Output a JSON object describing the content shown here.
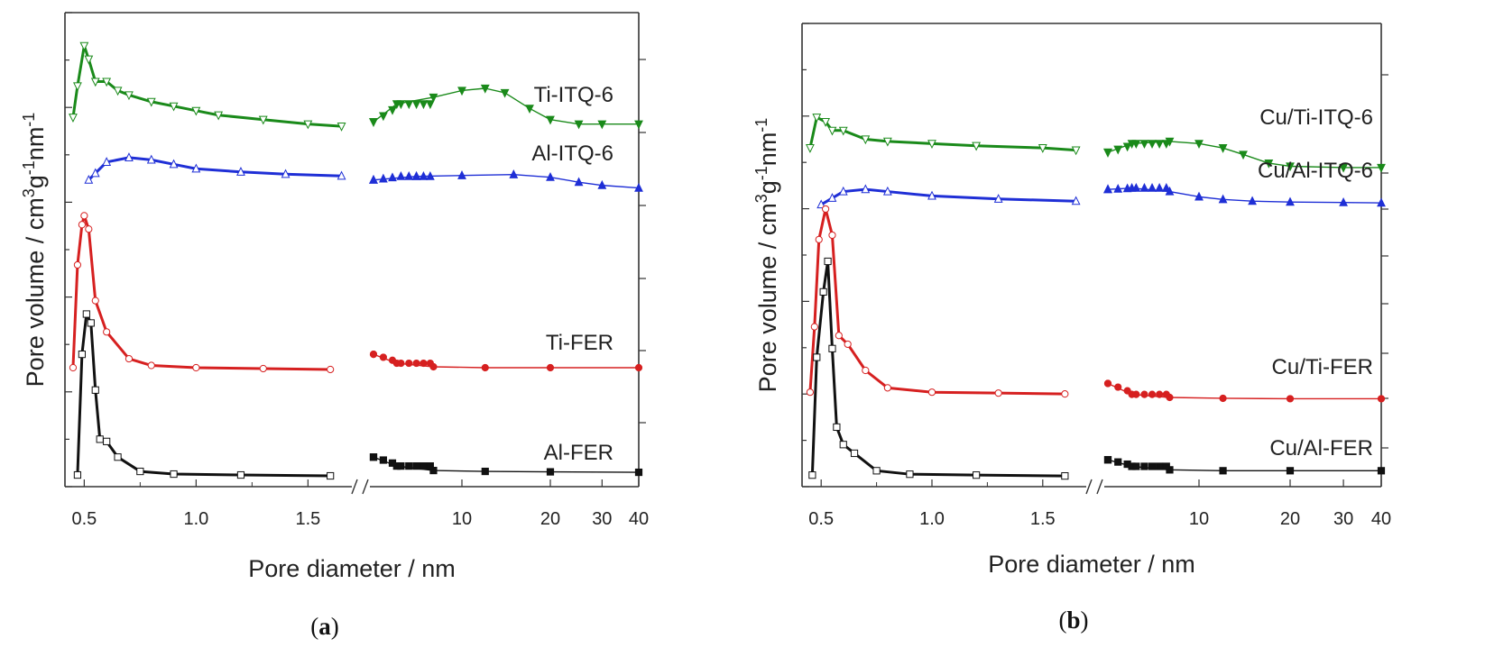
{
  "chart_data": [
    {
      "type": "line",
      "panel_label": {
        "open": "(",
        "letter": "a",
        "close": ")"
      },
      "xlabel": "Pore diameter / nm",
      "ylabel": "Pore volume / cm3g-1nm-1",
      "ylabel_parts": {
        "main": "Pore volume / cm",
        "sup1": "3",
        "mid": "g",
        "sup2": "-1",
        "unit": "nm",
        "sup3": "-1"
      },
      "x_left_ticks": [
        "0.5",
        "1.0",
        "1.5"
      ],
      "x_right_ticks": [
        "10",
        "20",
        "30",
        "40"
      ],
      "series": [
        {
          "name": "Ti-ITQ-6",
          "color": "#1a8a1a",
          "marker": "triangle-down",
          "left": [
            [
              0.45,
              0.81
            ],
            [
              0.47,
              0.88
            ],
            [
              0.5,
              0.97
            ],
            [
              0.52,
              0.94
            ],
            [
              0.55,
              0.89
            ],
            [
              0.6,
              0.89
            ],
            [
              0.65,
              0.87
            ],
            [
              0.7,
              0.86
            ],
            [
              0.8,
              0.845
            ],
            [
              0.9,
              0.835
            ],
            [
              1.0,
              0.825
            ],
            [
              1.1,
              0.815
            ],
            [
              1.3,
              0.805
            ],
            [
              1.5,
              0.795
            ],
            [
              1.65,
              0.79
            ]
          ],
          "right": [
            [
              5,
              0.8
            ],
            [
              6,
              0.84
            ],
            [
              8,
              0.855
            ],
            [
              10,
              0.87
            ],
            [
              12,
              0.875
            ],
            [
              14,
              0.865
            ],
            [
              17,
              0.83
            ],
            [
              20,
              0.805
            ],
            [
              25,
              0.795
            ],
            [
              30,
              0.795
            ],
            [
              40,
              0.795
            ]
          ]
        },
        {
          "name": "Al-ITQ-6",
          "color": "#1f2fd6",
          "marker": "triangle-up",
          "left": [
            [
              0.52,
              0.67
            ],
            [
              0.55,
              0.685
            ],
            [
              0.6,
              0.71
            ],
            [
              0.7,
              0.72
            ],
            [
              0.8,
              0.715
            ],
            [
              0.9,
              0.705
            ],
            [
              1.0,
              0.695
            ],
            [
              1.2,
              0.688
            ],
            [
              1.4,
              0.683
            ],
            [
              1.65,
              0.679
            ]
          ],
          "right": [
            [
              5,
              0.67
            ],
            [
              7,
              0.678
            ],
            [
              10,
              0.68
            ],
            [
              15,
              0.682
            ],
            [
              20,
              0.676
            ],
            [
              25,
              0.665
            ],
            [
              30,
              0.658
            ],
            [
              40,
              0.652
            ]
          ]
        },
        {
          "name": "Ti-FER",
          "color": "#d62020",
          "marker": "circle",
          "left": [
            [
              0.45,
              0.25
            ],
            [
              0.47,
              0.48
            ],
            [
              0.49,
              0.57
            ],
            [
              0.5,
              0.59
            ],
            [
              0.52,
              0.56
            ],
            [
              0.55,
              0.4
            ],
            [
              0.6,
              0.33
            ],
            [
              0.7,
              0.27
            ],
            [
              0.8,
              0.255
            ],
            [
              1.0,
              0.25
            ],
            [
              1.3,
              0.248
            ],
            [
              1.6,
              0.246
            ]
          ],
          "right": [
            [
              5,
              0.28
            ],
            [
              6,
              0.26
            ],
            [
              8,
              0.252
            ],
            [
              12,
              0.25
            ],
            [
              20,
              0.25
            ],
            [
              40,
              0.25
            ]
          ]
        },
        {
          "name": "Al-FER",
          "color": "#111111",
          "marker": "square",
          "left": [
            [
              0.47,
              0.01
            ],
            [
              0.49,
              0.28
            ],
            [
              0.51,
              0.37
            ],
            [
              0.53,
              0.35
            ],
            [
              0.55,
              0.2
            ],
            [
              0.57,
              0.09
            ],
            [
              0.6,
              0.085
            ],
            [
              0.65,
              0.05
            ],
            [
              0.75,
              0.018
            ],
            [
              0.9,
              0.012
            ],
            [
              1.2,
              0.01
            ],
            [
              1.6,
              0.008
            ]
          ],
          "right": [
            [
              5,
              0.05
            ],
            [
              6,
              0.03
            ],
            [
              8,
              0.02
            ],
            [
              12,
              0.018
            ],
            [
              20,
              0.017
            ],
            [
              40,
              0.016
            ]
          ]
        }
      ]
    },
    {
      "type": "line",
      "panel_label": {
        "open": "(",
        "letter": "b",
        "close": ")"
      },
      "xlabel": "Pore diameter / nm",
      "ylabel": "Pore volume / cm3g-1nm-1",
      "ylabel_parts": {
        "main": "Pore volume / cm",
        "sup1": "3",
        "mid": "g",
        "sup2": "-1",
        "unit": "nm",
        "sup3": "-1"
      },
      "x_left_ticks": [
        "0.5",
        "1.0",
        "1.5"
      ],
      "x_right_ticks": [
        "10",
        "20",
        "30",
        "40"
      ],
      "series": [
        {
          "name": "Cu/Ti-ITQ-6",
          "color": "#1a8a1a",
          "marker": "triangle-down",
          "left": [
            [
              0.45,
              0.76
            ],
            [
              0.48,
              0.83
            ],
            [
              0.52,
              0.82
            ],
            [
              0.55,
              0.8
            ],
            [
              0.6,
              0.8
            ],
            [
              0.7,
              0.78
            ],
            [
              0.8,
              0.775
            ],
            [
              1.0,
              0.77
            ],
            [
              1.2,
              0.765
            ],
            [
              1.5,
              0.76
            ],
            [
              1.65,
              0.755
            ]
          ],
          "right": [
            [
              5,
              0.75
            ],
            [
              6,
              0.77
            ],
            [
              8,
              0.775
            ],
            [
              10,
              0.77
            ],
            [
              12,
              0.76
            ],
            [
              14,
              0.745
            ],
            [
              17,
              0.725
            ],
            [
              20,
              0.718
            ],
            [
              30,
              0.715
            ],
            [
              40,
              0.715
            ]
          ]
        },
        {
          "name": "Cu/Al-ITQ-6",
          "color": "#1f2fd6",
          "marker": "triangle-up",
          "left": [
            [
              0.5,
              0.63
            ],
            [
              0.55,
              0.645
            ],
            [
              0.6,
              0.66
            ],
            [
              0.7,
              0.665
            ],
            [
              0.8,
              0.66
            ],
            [
              1.0,
              0.65
            ],
            [
              1.3,
              0.643
            ],
            [
              1.65,
              0.638
            ]
          ],
          "right": [
            [
              5,
              0.665
            ],
            [
              6,
              0.668
            ],
            [
              8,
              0.66
            ],
            [
              10,
              0.648
            ],
            [
              12,
              0.642
            ],
            [
              15,
              0.638
            ],
            [
              20,
              0.636
            ],
            [
              30,
              0.635
            ],
            [
              40,
              0.634
            ]
          ]
        },
        {
          "name": "Cu/Ti-FER",
          "color": "#d62020",
          "marker": "circle",
          "left": [
            [
              0.45,
              0.2
            ],
            [
              0.47,
              0.35
            ],
            [
              0.49,
              0.55
            ],
            [
              0.52,
              0.62
            ],
            [
              0.55,
              0.56
            ],
            [
              0.58,
              0.33
            ],
            [
              0.62,
              0.31
            ],
            [
              0.7,
              0.25
            ],
            [
              0.8,
              0.21
            ],
            [
              1.0,
              0.2
            ],
            [
              1.3,
              0.198
            ],
            [
              1.6,
              0.196
            ]
          ],
          "right": [
            [
              5,
              0.22
            ],
            [
              6,
              0.195
            ],
            [
              8,
              0.188
            ],
            [
              12,
              0.186
            ],
            [
              20,
              0.185
            ],
            [
              40,
              0.185
            ]
          ]
        },
        {
          "name": "Cu/Al-FER",
          "color": "#111111",
          "marker": "square",
          "left": [
            [
              0.46,
              0.01
            ],
            [
              0.48,
              0.28
            ],
            [
              0.51,
              0.43
            ],
            [
              0.53,
              0.5
            ],
            [
              0.55,
              0.3
            ],
            [
              0.57,
              0.12
            ],
            [
              0.6,
              0.08
            ],
            [
              0.65,
              0.06
            ],
            [
              0.75,
              0.02
            ],
            [
              0.9,
              0.012
            ],
            [
              1.2,
              0.01
            ],
            [
              1.6,
              0.008
            ]
          ],
          "right": [
            [
              5,
              0.045
            ],
            [
              6,
              0.03
            ],
            [
              8,
              0.022
            ],
            [
              12,
              0.02
            ],
            [
              20,
              0.02
            ],
            [
              40,
              0.02
            ]
          ]
        }
      ]
    }
  ]
}
